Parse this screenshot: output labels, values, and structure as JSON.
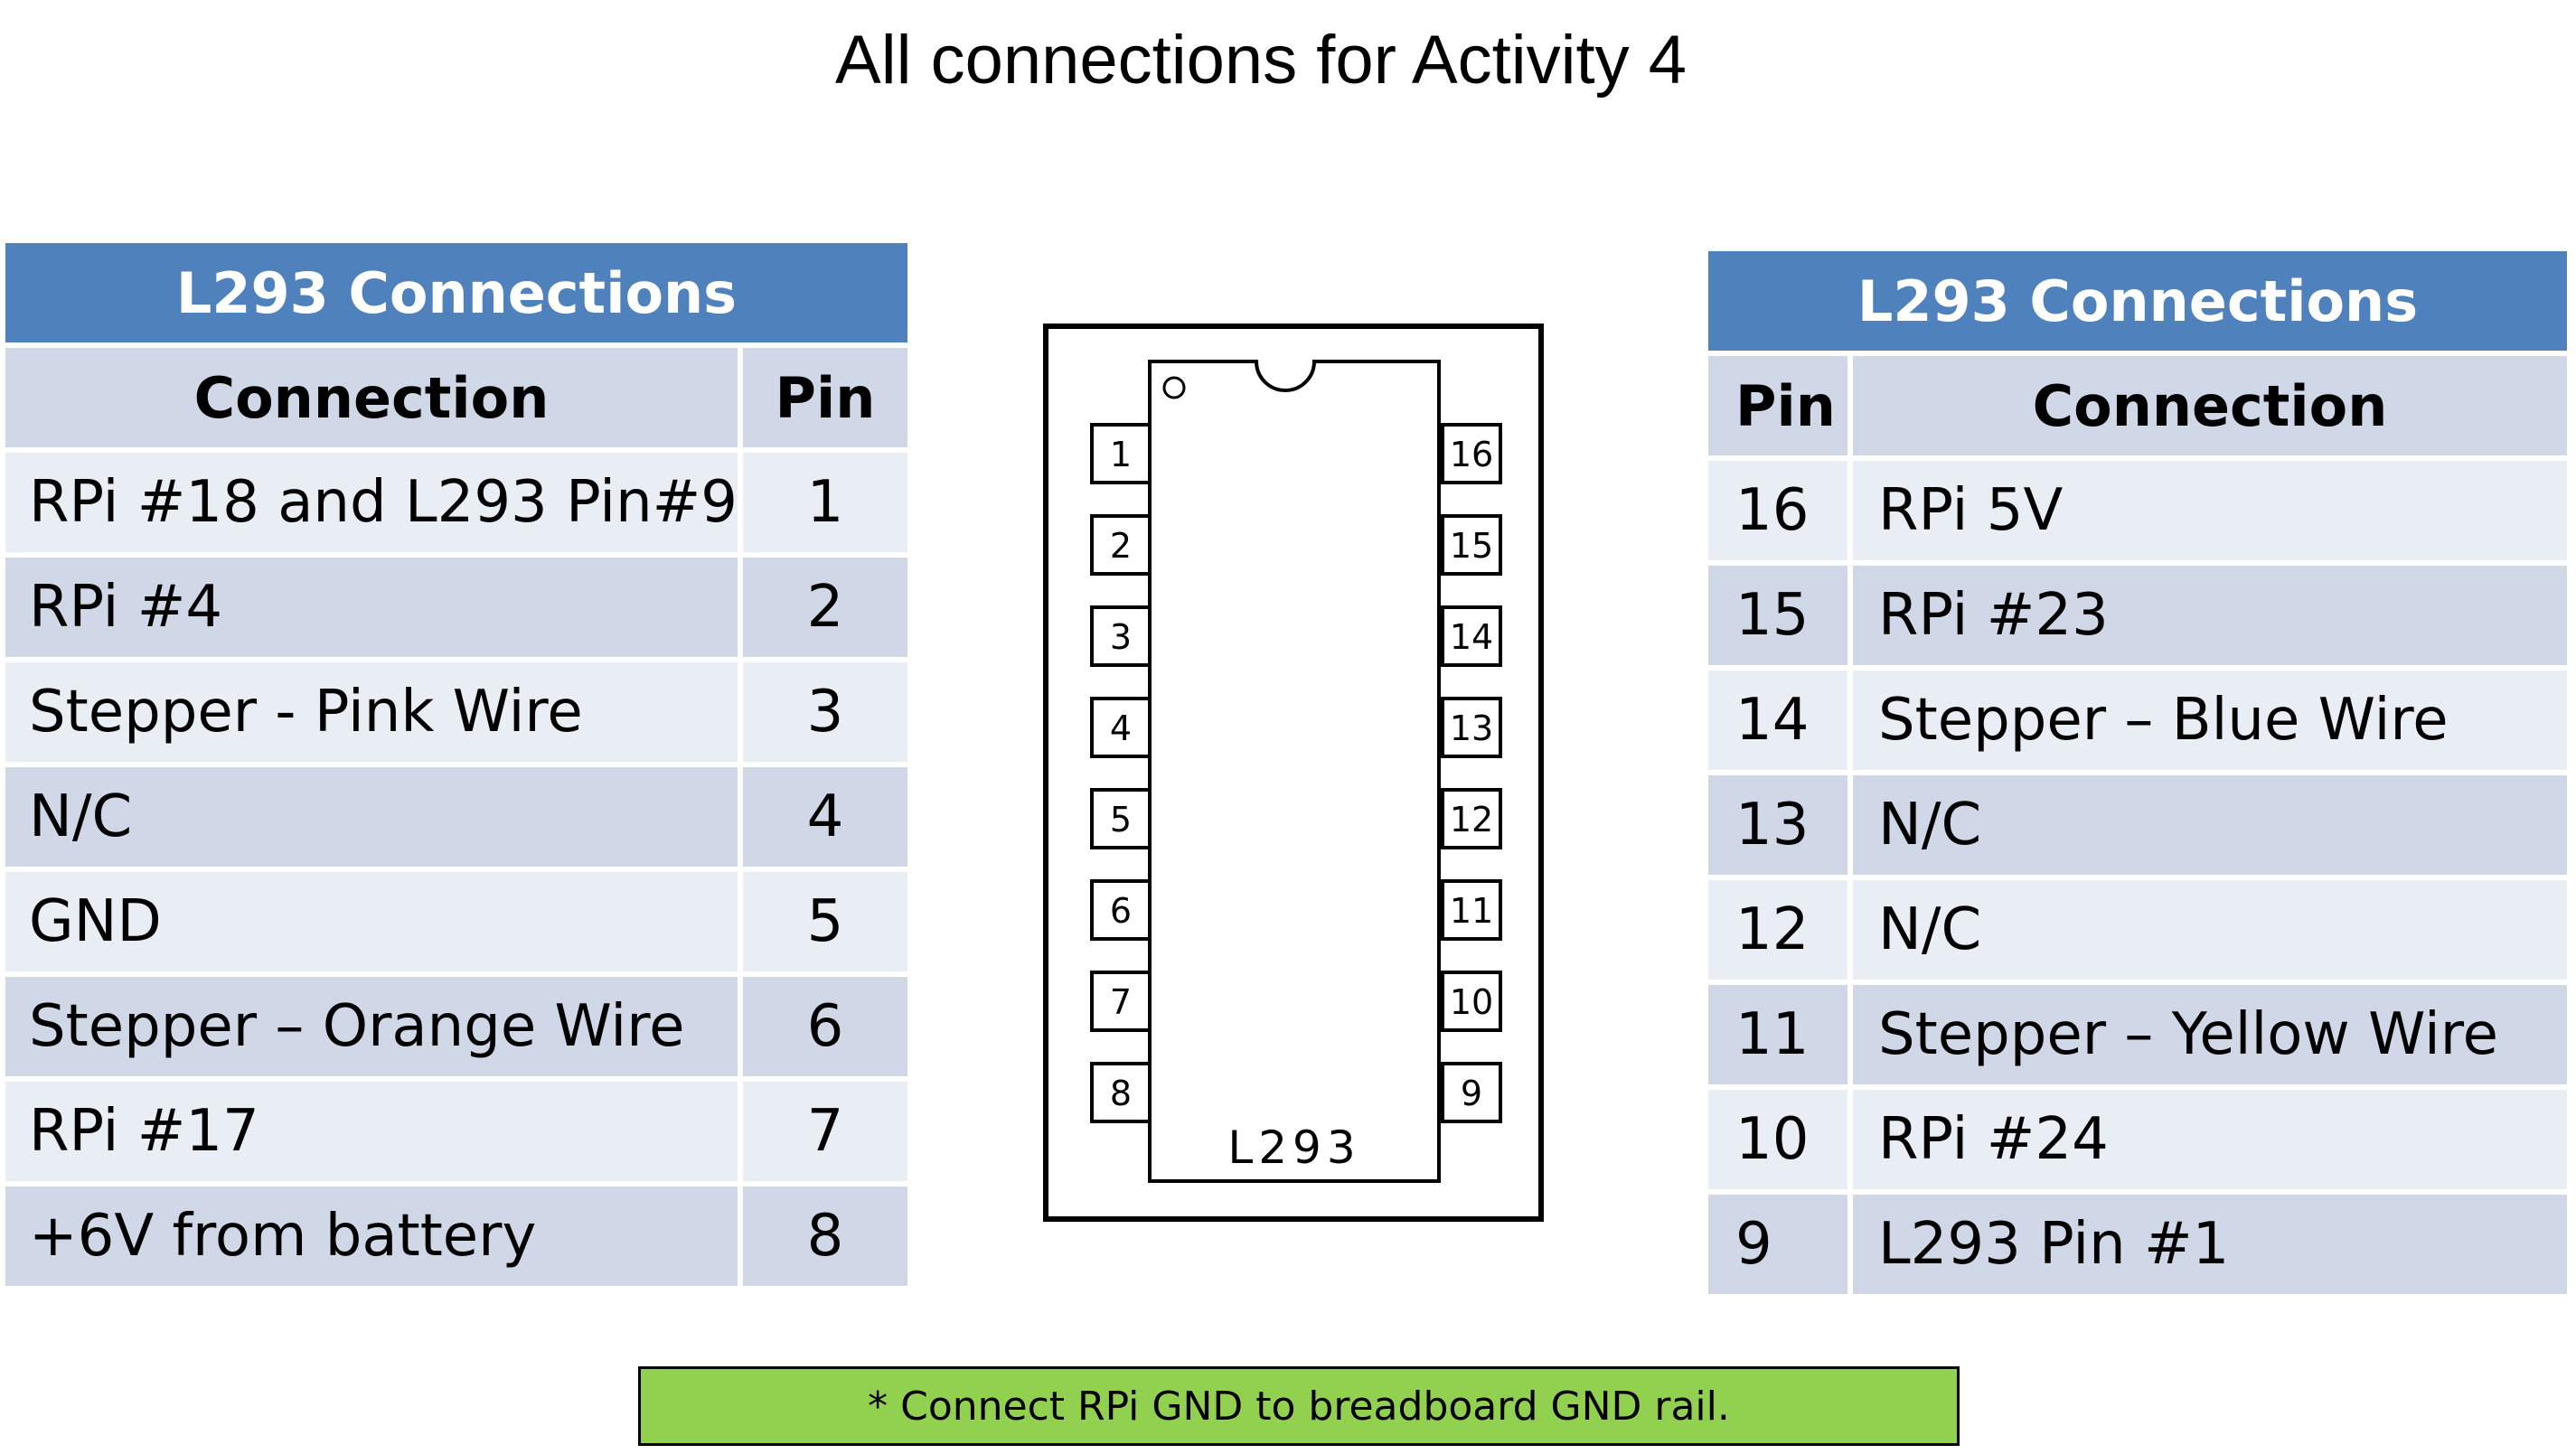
{
  "title": "All connections for Activity 4",
  "left_table": {
    "caption": "L293 Connections",
    "headers": {
      "connection": "Connection",
      "pin": "Pin"
    },
    "rows": [
      {
        "connection": "RPi #18 and L293 Pin#9",
        "pin": "1"
      },
      {
        "connection": "RPi #4",
        "pin": "2"
      },
      {
        "connection": "Stepper  - Pink Wire",
        "pin": "3"
      },
      {
        "connection": "N/C",
        "pin": "4"
      },
      {
        "connection": "GND",
        "pin": "5"
      },
      {
        "connection": "Stepper – Orange Wire",
        "pin": "6"
      },
      {
        "connection": "RPi #17",
        "pin": "7"
      },
      {
        "connection": "+6V from battery",
        "pin": "8"
      }
    ]
  },
  "right_table": {
    "caption": "L293 Connections",
    "headers": {
      "pin": "Pin",
      "connection": "Connection"
    },
    "rows": [
      {
        "pin": "16",
        "connection": "RPi 5V"
      },
      {
        "pin": "15",
        "connection": "RPi #23"
      },
      {
        "pin": "14",
        "connection": "Stepper – Blue Wire"
      },
      {
        "pin": "13",
        "connection": "N/C"
      },
      {
        "pin": "12",
        "connection": "N/C"
      },
      {
        "pin": "11",
        "connection": "Stepper – Yellow Wire"
      },
      {
        "pin": "10",
        "connection": "RPi #24"
      },
      {
        "pin": "9",
        "connection": "L293 Pin #1"
      }
    ]
  },
  "chip": {
    "label": "L293",
    "left_pins": [
      "1",
      "2",
      "3",
      "4",
      "5",
      "6",
      "7",
      "8"
    ],
    "right_pins": [
      "16",
      "15",
      "14",
      "13",
      "12",
      "11",
      "10",
      "9"
    ]
  },
  "note": "* Connect RPi GND to breadboard GND rail.",
  "colors": {
    "table_caption": "#4f81bd",
    "row_dark": "#d0d8e8",
    "row_light": "#e9edf4",
    "note_background": "#92d050"
  }
}
